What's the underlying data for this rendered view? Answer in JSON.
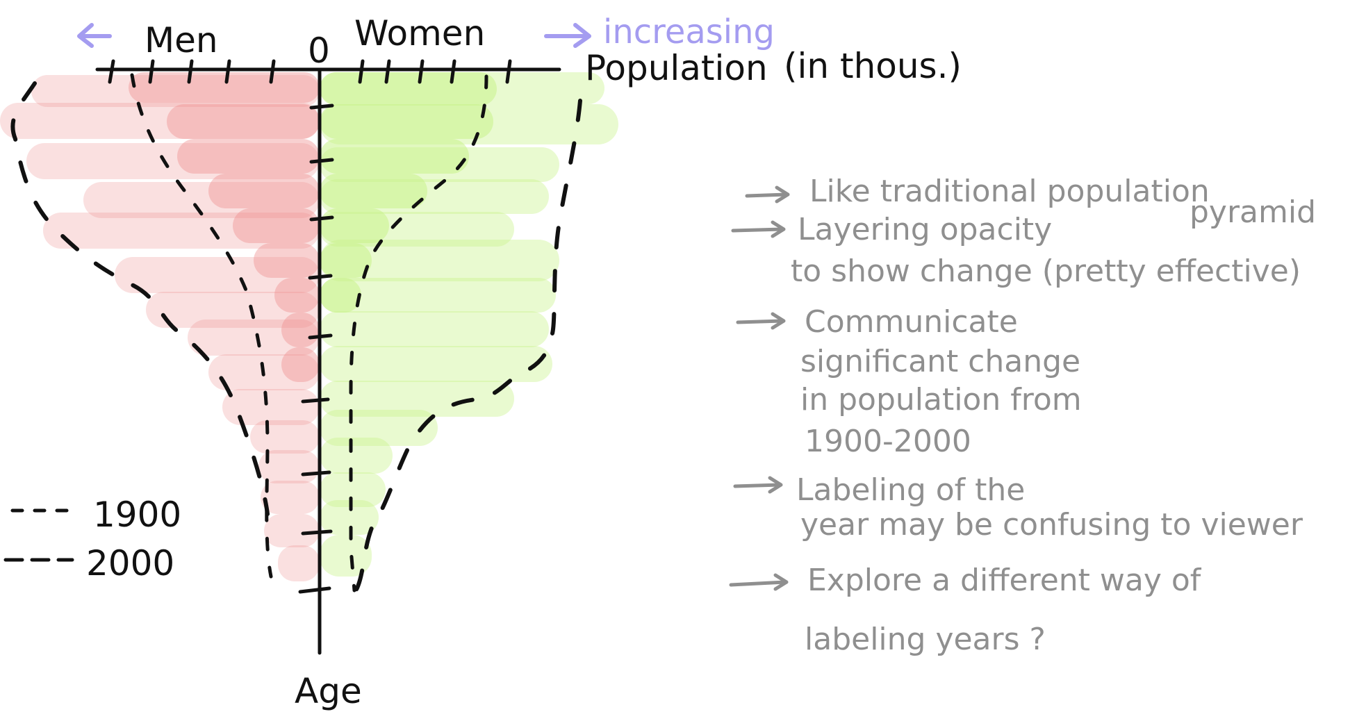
{
  "diagram": {
    "left_label": "Men",
    "right_label": "Women",
    "zero_label": "0",
    "direction_label": "increasing",
    "x_axis_label": "Population",
    "x_axis_unit": "(in thous.)",
    "y_axis_label": "Age"
  },
  "legend": [
    {
      "style": "dotted",
      "label": "1900"
    },
    {
      "style": "dashed",
      "label": "2000"
    }
  ],
  "notes": [
    "Like traditional population",
    "pyramid",
    "Layering opacity",
    "to show change (pretty effective)",
    "Communicate",
    "significant change",
    "in population from",
    "1900-2000",
    "Labeling of the",
    "year may be confusing to viewer",
    "Explore a different way of",
    "labeling years ?"
  ],
  "colors": {
    "men_fill": "#ee8e8e",
    "women_fill": "#c8f28a",
    "arrow_accent": "#a49cf0",
    "note_gray": "#8f8f8f",
    "ink": "#111111"
  },
  "icons": [
    "left-arrow-icon",
    "right-arrow-icon",
    "note-arrow-icon"
  ]
}
